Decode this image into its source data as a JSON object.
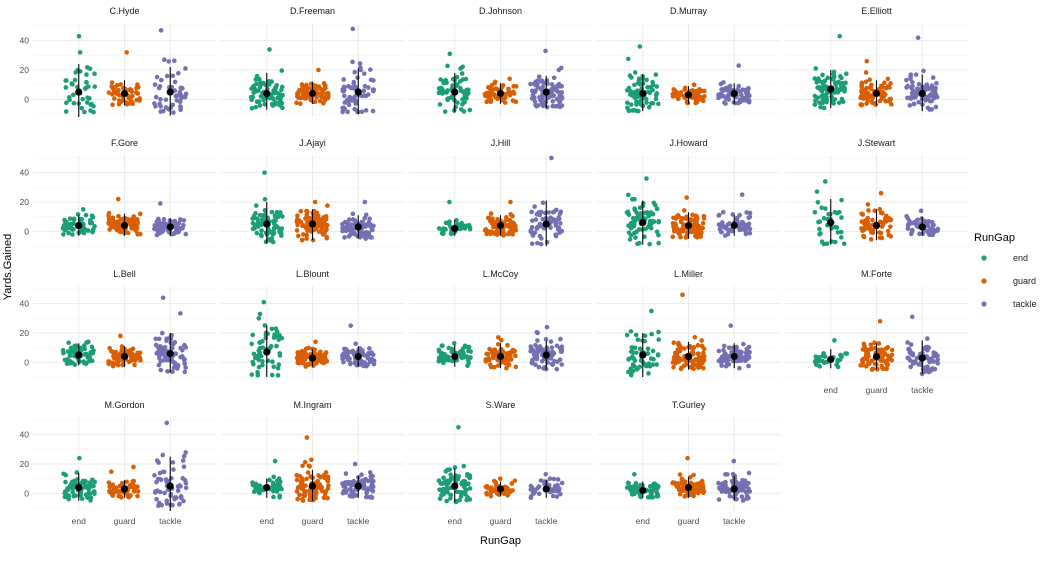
{
  "chart_data": {
    "type": "scatter",
    "subtype": "faceted jittered strip plot with mean ± sd",
    "xlabel": "RunGap",
    "ylabel": "Yards.Gained",
    "categories": [
      "end",
      "guard",
      "tackle"
    ],
    "yticks": [
      0,
      20,
      40
    ],
    "ylim": [
      -12,
      52
    ],
    "grid": true,
    "facet_layout": {
      "ncol": 5,
      "nrow": 4
    },
    "legend": {
      "title": "RunGap",
      "position": "right",
      "entries": [
        {
          "label": "end",
          "color": "#1b9e77"
        },
        {
          "label": "guard",
          "color": "#d95f02"
        },
        {
          "label": "tackle",
          "color": "#7570b3"
        }
      ]
    },
    "colors": {
      "end": "#1b9e77",
      "guard": "#d95f02",
      "tackle": "#7570b3",
      "summary": "#000000"
    },
    "facets": [
      {
        "player": "C.Hyde",
        "stats": [
          {
            "gap": "end",
            "mean": 5,
            "lo": -12,
            "hi": 24,
            "max": 43,
            "n": 40
          },
          {
            "gap": "guard",
            "mean": 4,
            "lo": -4,
            "hi": 13,
            "max": 32,
            "n": 50
          },
          {
            "gap": "tackle",
            "mean": 5,
            "lo": -11,
            "hi": 22,
            "max": 47,
            "n": 45
          }
        ]
      },
      {
        "player": "D.Freeman",
        "stats": [
          {
            "gap": "end",
            "mean": 4,
            "lo": -7,
            "hi": 18,
            "max": 34,
            "n": 70
          },
          {
            "gap": "guard",
            "mean": 4,
            "lo": -3,
            "hi": 12,
            "max": 20,
            "n": 75
          },
          {
            "gap": "tackle",
            "mean": 5,
            "lo": -10,
            "hi": 21,
            "max": 48,
            "n": 60
          }
        ]
      },
      {
        "player": "D.Johnson",
        "stats": [
          {
            "gap": "end",
            "mean": 5,
            "lo": -9,
            "hi": 18,
            "max": 31,
            "n": 65
          },
          {
            "gap": "guard",
            "mean": 4,
            "lo": -3,
            "hi": 11,
            "max": 14,
            "n": 55
          },
          {
            "gap": "tackle",
            "mean": 5,
            "lo": -6,
            "hi": 16,
            "max": 33,
            "n": 75
          }
        ]
      },
      {
        "player": "D.Murray",
        "stats": [
          {
            "gap": "end",
            "mean": 4,
            "lo": -8,
            "hi": 17,
            "max": 36,
            "n": 75
          },
          {
            "gap": "guard",
            "mean": 3,
            "lo": -3,
            "hi": 9,
            "max": 10,
            "n": 60
          },
          {
            "gap": "tackle",
            "mean": 4,
            "lo": -3,
            "hi": 11,
            "max": 23,
            "n": 60
          }
        ]
      },
      {
        "player": "E.Elliott",
        "stats": [
          {
            "gap": "end",
            "mean": 7,
            "lo": -6,
            "hi": 20,
            "max": 43,
            "n": 80
          },
          {
            "gap": "guard",
            "mean": 4,
            "lo": -4,
            "hi": 13,
            "max": 26,
            "n": 80
          },
          {
            "gap": "tackle",
            "mean": 4,
            "lo": -8,
            "hi": 17,
            "max": 42,
            "n": 75
          }
        ]
      },
      {
        "player": "F.Gore",
        "stats": [
          {
            "gap": "end",
            "mean": 4,
            "lo": -3,
            "hi": 11,
            "max": 15,
            "n": 60
          },
          {
            "gap": "guard",
            "mean": 4,
            "lo": -3,
            "hi": 12,
            "max": 22,
            "n": 70
          },
          {
            "gap": "tackle",
            "mean": 3,
            "lo": -3,
            "hi": 9,
            "max": 19,
            "n": 75
          }
        ]
      },
      {
        "player": "J.Ajayi",
        "stats": [
          {
            "gap": "end",
            "mean": 5,
            "lo": -8,
            "hi": 20,
            "max": 40,
            "n": 70
          },
          {
            "gap": "guard",
            "mean": 5,
            "lo": -6,
            "hi": 15,
            "max": 20,
            "n": 85
          },
          {
            "gap": "tackle",
            "mean": 3,
            "lo": -5,
            "hi": 11,
            "max": 20,
            "n": 75
          }
        ]
      },
      {
        "player": "J.Hill",
        "stats": [
          {
            "gap": "end",
            "mean": 2,
            "lo": -3,
            "hi": 8,
            "max": 20,
            "n": 40
          },
          {
            "gap": "guard",
            "mean": 4,
            "lo": -3,
            "hi": 11,
            "max": 20,
            "n": 80
          },
          {
            "gap": "tackle",
            "mean": 5,
            "lo": -10,
            "hi": 21,
            "max": 50,
            "n": 60
          }
        ]
      },
      {
        "player": "J.Howard",
        "stats": [
          {
            "gap": "end",
            "mean": 6,
            "lo": -9,
            "hi": 21,
            "max": 36,
            "n": 75
          },
          {
            "gap": "guard",
            "mean": 4,
            "lo": -5,
            "hi": 13,
            "max": 23,
            "n": 85
          },
          {
            "gap": "tackle",
            "mean": 4,
            "lo": -3,
            "hi": 11,
            "max": 25,
            "n": 60
          }
        ]
      },
      {
        "player": "J.Stewart",
        "stats": [
          {
            "gap": "end",
            "mean": 6,
            "lo": -9,
            "hi": 22,
            "max": 34,
            "n": 35
          },
          {
            "gap": "guard",
            "mean": 4,
            "lo": -6,
            "hi": 15,
            "max": 26,
            "n": 55
          },
          {
            "gap": "tackle",
            "mean": 3,
            "lo": -3,
            "hi": 10,
            "max": 14,
            "n": 50
          }
        ]
      },
      {
        "player": "L.Bell",
        "stats": [
          {
            "gap": "end",
            "mean": 5,
            "lo": -2,
            "hi": 13,
            "max": 14,
            "n": 60
          },
          {
            "gap": "guard",
            "mean": 4,
            "lo": -3,
            "hi": 11,
            "max": 18,
            "n": 75
          },
          {
            "gap": "tackle",
            "mean": 6,
            "lo": -7,
            "hi": 20,
            "max": 44,
            "n": 70
          }
        ]
      },
      {
        "player": "L.Blount",
        "stats": [
          {
            "gap": "end",
            "mean": 7,
            "lo": -10,
            "hi": 25,
            "max": 41,
            "n": 55
          },
          {
            "gap": "guard",
            "mean": 3,
            "lo": -3,
            "hi": 9,
            "max": 14,
            "n": 90
          },
          {
            "gap": "tackle",
            "mean": 4,
            "lo": -3,
            "hi": 11,
            "max": 25,
            "n": 70
          }
        ]
      },
      {
        "player": "L.McCoy",
        "stats": [
          {
            "gap": "end",
            "mean": 4,
            "lo": -3,
            "hi": 12,
            "max": 13,
            "n": 55
          },
          {
            "gap": "guard",
            "mean": 4,
            "lo": -4,
            "hi": 13,
            "max": 17,
            "n": 60
          },
          {
            "gap": "tackle",
            "mean": 5,
            "lo": -5,
            "hi": 15,
            "max": 24,
            "n": 80
          }
        ]
      },
      {
        "player": "L.Miller",
        "stats": [
          {
            "gap": "end",
            "mean": 5,
            "lo": -10,
            "hi": 20,
            "max": 35,
            "n": 55
          },
          {
            "gap": "guard",
            "mean": 4,
            "lo": -5,
            "hi": 14,
            "max": 46,
            "n": 85
          },
          {
            "gap": "tackle",
            "mean": 4,
            "lo": -4,
            "hi": 13,
            "max": 25,
            "n": 65
          }
        ]
      },
      {
        "player": "M.Forte",
        "stats": [
          {
            "gap": "end",
            "mean": 2,
            "lo": -4,
            "hi": 9,
            "max": 15,
            "n": 30
          },
          {
            "gap": "guard",
            "mean": 4,
            "lo": -5,
            "hi": 13,
            "max": 28,
            "n": 70
          },
          {
            "gap": "tackle",
            "mean": 3,
            "lo": -8,
            "hi": 15,
            "max": 31,
            "n": 65
          }
        ]
      },
      {
        "player": "M.Gordon",
        "stats": [
          {
            "gap": "end",
            "mean": 4,
            "lo": -5,
            "hi": 14,
            "max": 24,
            "n": 70
          },
          {
            "gap": "guard",
            "mean": 3,
            "lo": -3,
            "hi": 9,
            "max": 18,
            "n": 55
          },
          {
            "gap": "tackle",
            "mean": 5,
            "lo": -14,
            "hi": 25,
            "max": 48,
            "n": 55
          }
        ]
      },
      {
        "player": "M.Ingram",
        "stats": [
          {
            "gap": "end",
            "mean": 4,
            "lo": -3,
            "hi": 10,
            "max": 22,
            "n": 45
          },
          {
            "gap": "guard",
            "mean": 5,
            "lo": -5,
            "hi": 16,
            "max": 38,
            "n": 85
          },
          {
            "gap": "tackle",
            "mean": 5,
            "lo": -3,
            "hi": 12,
            "max": 20,
            "n": 75
          }
        ]
      },
      {
        "player": "S.Ware",
        "stats": [
          {
            "gap": "end",
            "mean": 5,
            "lo": -6,
            "hi": 17,
            "max": 45,
            "n": 75
          },
          {
            "gap": "guard",
            "mean": 3,
            "lo": -2,
            "hi": 8,
            "max": 10,
            "n": 45
          },
          {
            "gap": "tackle",
            "mean": 3,
            "lo": -3,
            "hi": 9,
            "max": 13,
            "n": 45
          }
        ]
      },
      {
        "player": "T.Gurley",
        "stats": [
          {
            "gap": "end",
            "mean": 2,
            "lo": -3,
            "hi": 8,
            "max": 13,
            "n": 55
          },
          {
            "gap": "guard",
            "mean": 4,
            "lo": -3,
            "hi": 11,
            "max": 24,
            "n": 80
          },
          {
            "gap": "tackle",
            "mean": 3,
            "lo": -5,
            "hi": 12,
            "max": 22,
            "n": 75
          }
        ]
      }
    ]
  }
}
